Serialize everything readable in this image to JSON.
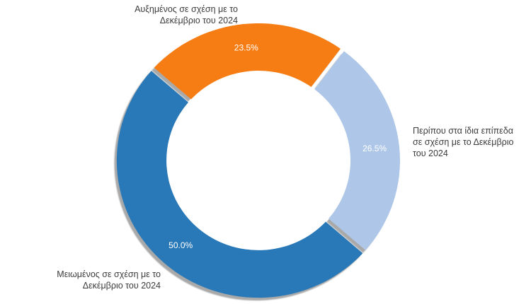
{
  "chart_data": {
    "type": "pie",
    "subtype": "donut",
    "title": "",
    "legend_position": "outside-callout-labels",
    "direction": "clockwise",
    "start_angle_deg": -48.3,
    "hole_ratio": 0.65,
    "background": "#FFFFFF",
    "value_label_color": "#FFFFFF",
    "shadow_color": "#A9A9A9",
    "slices": [
      {
        "key": "increased",
        "label": "Αυξημένος σε σχέση με το Δεκέμβριο του 2024",
        "label_lines": [
          "Αυξημένος σε σχέση με το",
          "Δεκέμβριο του 2024"
        ],
        "value": 23.5,
        "display": "23.5%",
        "color": "#F67D13"
      },
      {
        "key": "same",
        "label": "Περίπου στα ίδια επίπεδα σε σχέση με το Δεκέμβριο του 2024",
        "label_lines": [
          "Περίπου στα ίδια επίπεδα",
          "σε σχέση με το Δεκέμβριο",
          "του 2024"
        ],
        "value": 26.5,
        "display": "26.5%",
        "color": "#AEC7E8"
      },
      {
        "key": "decreased",
        "label": "Μειωμένος σε σχέση με το Δεκέμβριο του 2024",
        "label_lines": [
          "Μειωμένος σε σχέση με το",
          "Δεκέμβριο του 2024"
        ],
        "value": 50.0,
        "display": "50.0%",
        "color": "#2979B8"
      }
    ]
  }
}
